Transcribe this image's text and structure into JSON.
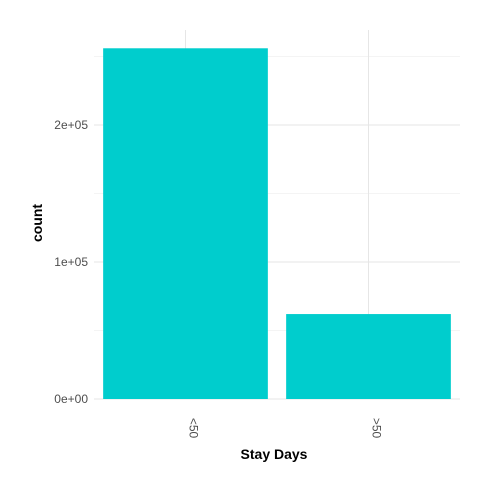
{
  "chart_data": {
    "type": "bar",
    "categories": [
      "<50",
      ">50"
    ],
    "values": [
      256000,
      62000
    ],
    "xlabel": "Stay Days",
    "ylabel": "count",
    "ylim": [
      0,
      260000
    ],
    "y_ticks": [
      0,
      100000,
      200000
    ],
    "y_tick_labels": [
      "0e+00",
      "1e+05",
      "2e+05"
    ],
    "bar_color": "#00CDCD",
    "grid": true,
    "legend": "none"
  }
}
